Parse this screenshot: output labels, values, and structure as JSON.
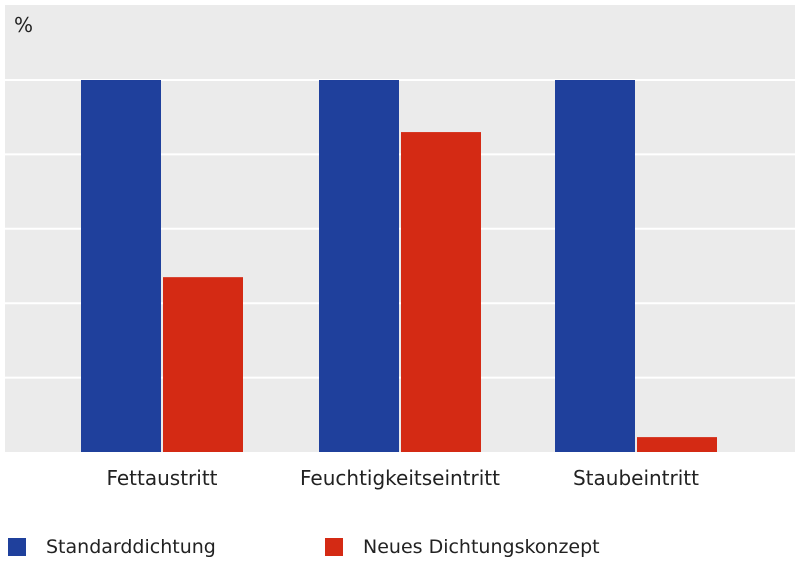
{
  "chart_data": {
    "type": "bar",
    "unit_label": "%",
    "categories": [
      "Fettaustritt",
      "Feuchtigkeitseintritt",
      "Staubeintritt"
    ],
    "series": [
      {
        "name": "Standarddichtung",
        "color": "#1f409c",
        "values": [
          100,
          100,
          100
        ]
      },
      {
        "name": "Neues Dichtungskonzept",
        "color": "#d42a14",
        "values": [
          47,
          86,
          4
        ]
      }
    ],
    "ylim": [
      0,
      120
    ],
    "gridlines": [
      20,
      40,
      60,
      80,
      100
    ],
    "grid": true,
    "background": "#ebebeb",
    "legend_position": "bottom"
  }
}
